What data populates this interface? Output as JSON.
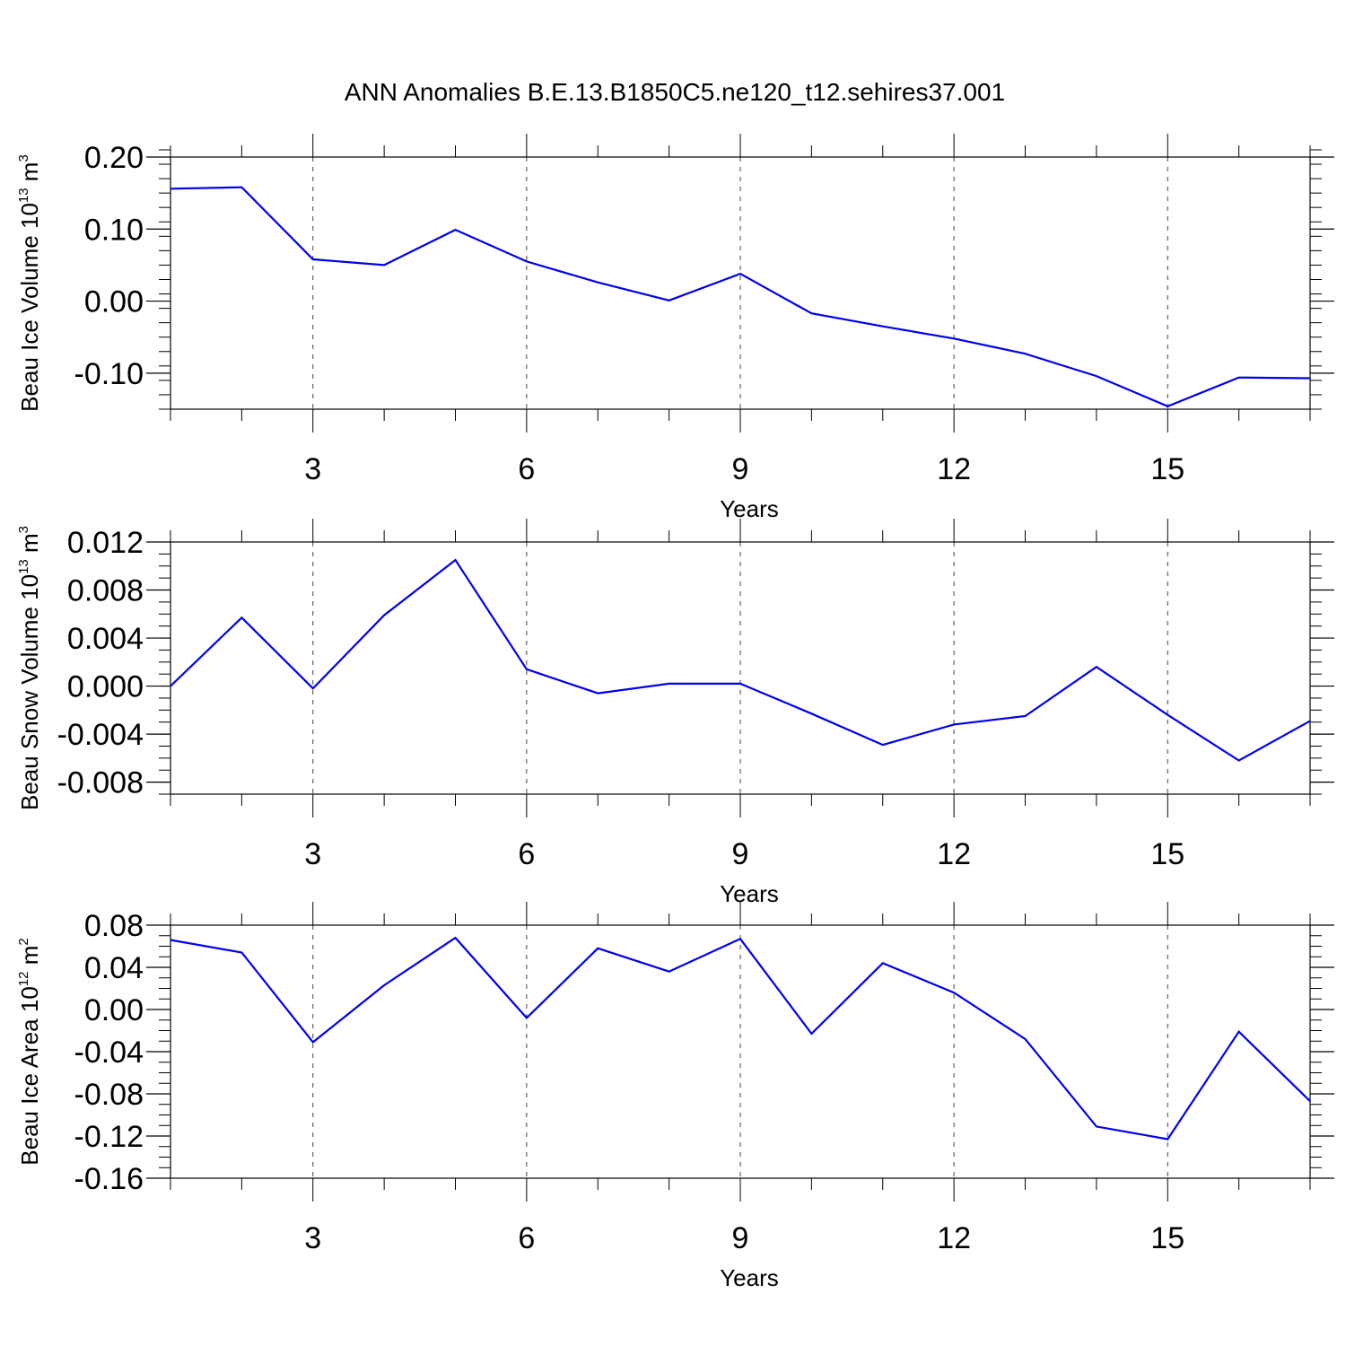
{
  "figure_title": "ANN Anomalies B.E.13.B1850C5.ne120_t12.sehires37.001",
  "colors": {
    "line": "#0000ee",
    "axis": "#000000",
    "grid": "#444444"
  },
  "chart_data": [
    {
      "type": "line",
      "title": "ANN Anomalies B.E.13.B1850C5.ne120_t12.sehires37.001",
      "ylabel": {
        "main": "Beau Ice Volume 10",
        "sup": "13",
        "unit": " m",
        "unit_sup": "3"
      },
      "xlabel": "Years",
      "xlim": [
        1,
        17
      ],
      "ylim": [
        -0.15,
        0.2
      ],
      "x_ticks": [
        3,
        6,
        9,
        12,
        15
      ],
      "x_tick_labels": [
        "3",
        "6",
        "9",
        "12",
        "15"
      ],
      "y_ticks": [
        0.2,
        0.1,
        0.0,
        -0.1
      ],
      "y_tick_labels": [
        "0.20",
        "0.10",
        "0.00",
        "-0.10"
      ],
      "y_minor_step": 0.02,
      "grid": "vertical-dashed",
      "series": [
        {
          "name": "Beau Ice Volume",
          "x": [
            1,
            2,
            3,
            4,
            5,
            6,
            7,
            8,
            9,
            10,
            11,
            12,
            13,
            14,
            15,
            16,
            17
          ],
          "values": [
            0.156,
            0.158,
            0.058,
            0.05,
            0.099,
            0.055,
            0.026,
            0.001,
            0.038,
            -0.017,
            -0.035,
            -0.052,
            -0.073,
            -0.104,
            -0.146,
            -0.106,
            -0.107
          ]
        }
      ]
    },
    {
      "type": "line",
      "ylabel": {
        "main": "Beau Snow Volume 10",
        "sup": "13",
        "unit": " m",
        "unit_sup": "3"
      },
      "xlabel": "Years",
      "xlim": [
        1,
        17
      ],
      "ylim": [
        -0.009,
        0.012
      ],
      "x_ticks": [
        3,
        6,
        9,
        12,
        15
      ],
      "x_tick_labels": [
        "3",
        "6",
        "9",
        "12",
        "15"
      ],
      "y_ticks": [
        0.012,
        0.008,
        0.004,
        0.0,
        -0.004,
        -0.008
      ],
      "y_tick_labels": [
        "0.012",
        "0.008",
        "0.004",
        "0.000",
        "-0.004",
        "-0.008"
      ],
      "y_minor_step": 0.001,
      "grid": "vertical-dashed",
      "series": [
        {
          "name": "Beau Snow Volume",
          "x": [
            1,
            2,
            3,
            4,
            5,
            6,
            7,
            8,
            9,
            10,
            11,
            12,
            13,
            14,
            15,
            16,
            17
          ],
          "values": [
            0.0,
            0.0057,
            -0.0002,
            0.0059,
            0.0105,
            0.0014,
            -0.0006,
            0.0002,
            0.0002,
            -0.0023,
            -0.0049,
            -0.0032,
            -0.0025,
            0.0016,
            -0.0024,
            -0.0062,
            -0.0029
          ]
        }
      ]
    },
    {
      "type": "line",
      "ylabel": {
        "main": "Beau Ice Area 10",
        "sup": "12",
        "unit": " m",
        "unit_sup": "2"
      },
      "xlabel": "Years",
      "xlim": [
        1,
        17
      ],
      "ylim": [
        -0.16,
        0.08
      ],
      "x_ticks": [
        3,
        6,
        9,
        12,
        15
      ],
      "x_tick_labels": [
        "3",
        "6",
        "9",
        "12",
        "15"
      ],
      "y_ticks": [
        0.08,
        0.04,
        0.0,
        -0.04,
        -0.08,
        -0.12,
        -0.16
      ],
      "y_tick_labels": [
        "0.08",
        "0.04",
        "0.00",
        "-0.04",
        "-0.08",
        "-0.12",
        "-0.16"
      ],
      "y_minor_step": 0.01,
      "grid": "vertical-dashed",
      "series": [
        {
          "name": "Beau Ice Area",
          "x": [
            1,
            2,
            3,
            4,
            5,
            6,
            7,
            8,
            9,
            10,
            11,
            12,
            13,
            14,
            15,
            16,
            17
          ],
          "values": [
            0.066,
            0.054,
            -0.031,
            0.023,
            0.068,
            -0.008,
            0.058,
            0.036,
            0.067,
            -0.023,
            0.044,
            0.016,
            -0.028,
            -0.111,
            -0.123,
            -0.021,
            -0.087
          ]
        }
      ]
    }
  ]
}
